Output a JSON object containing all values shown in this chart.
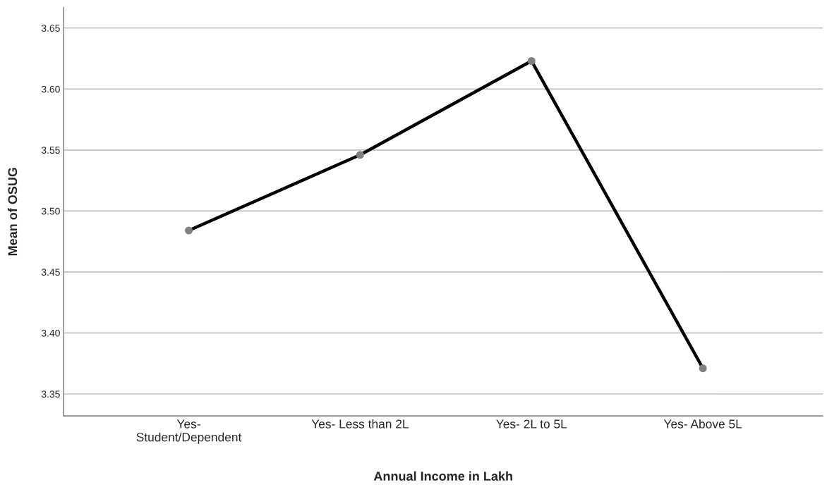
{
  "chart_data": {
    "type": "line",
    "xlabel": "Annual Income in Lakh",
    "ylabel": "Mean of OSUG",
    "categories": [
      "Yes-\nStudent/Dependent",
      "Yes- Less than 2L",
      "Yes- 2L to 5L",
      "Yes- Above 5L"
    ],
    "series": [
      {
        "color": "#000000",
        "values": [
          3.484,
          3.546,
          3.623,
          3.371
        ]
      }
    ],
    "ylim": [
      3.332,
      3.667
    ],
    "yticks": [
      {
        "value": 3.35,
        "label": "3.35"
      },
      {
        "value": 3.4,
        "label": "3.40"
      },
      {
        "value": 3.45,
        "label": "3.45"
      },
      {
        "value": 3.5,
        "label": "3.50"
      },
      {
        "value": 3.55,
        "label": "3.55"
      },
      {
        "value": 3.6,
        "label": "3.60"
      },
      {
        "value": 3.65,
        "label": "3.65"
      }
    ],
    "grid": "y",
    "legend": false,
    "marker": "circle",
    "line_style": "solid"
  }
}
